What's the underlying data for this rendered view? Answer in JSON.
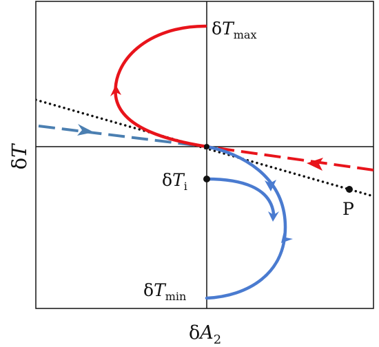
{
  "axes": {
    "x_label": {
      "delta": "δ",
      "symbol": "A",
      "subscript": "2"
    },
    "y_label": {
      "delta": "δ",
      "symbol": "T"
    }
  },
  "labels": {
    "t_max": {
      "delta": "δ",
      "symbol": "T",
      "subscript": "max"
    },
    "t_min": {
      "delta": "δ",
      "symbol": "T",
      "subscript": "min"
    },
    "t_i": {
      "delta": "δ",
      "symbol": "T",
      "subscript": "i"
    },
    "point_p": "P"
  },
  "colors": {
    "red": "#e8141b",
    "blue": "#4a7bd0",
    "steel_blue": "#4b7fb1",
    "black": "#111111"
  }
}
